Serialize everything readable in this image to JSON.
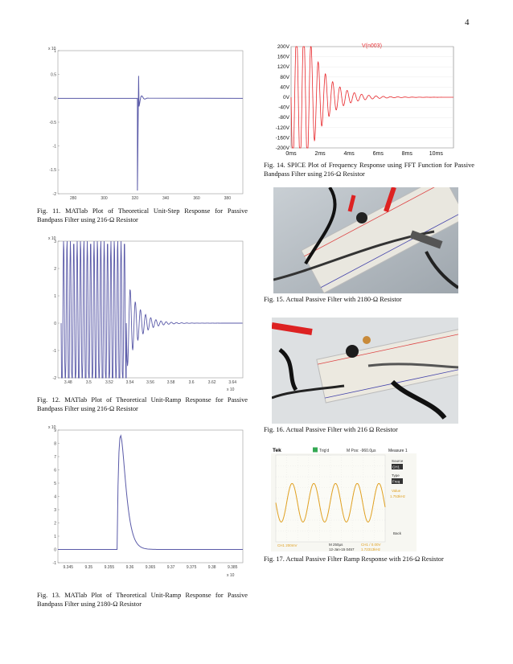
{
  "page": {
    "number": "4"
  },
  "figures": {
    "fig11": {
      "caption": "Fig. 11.   MATlab Plot of Theoretical Unit-Step Response for Passive Bandpass Filter using 216-Ω Resistor",
      "exponent": "x 10",
      "exponent_power": "-xxx",
      "y_ticks": [
        "1",
        "0.5",
        "0",
        "-0.5",
        "-1",
        "-1.5",
        "-2"
      ],
      "x_ticks": [
        "280",
        "300",
        "320",
        "340",
        "360",
        "380"
      ],
      "line_color": "#5a5aa8"
    },
    "fig12": {
      "caption": "Fig. 12.   MATlab Plot of Theoretical Unit-Ramp Response for Passive Bandpass Filter using 216-Ω Resistor",
      "exponent": "x 10",
      "y_ticks": [
        "3",
        "2",
        "1",
        "0",
        "-1",
        "-2"
      ],
      "x_ticks": [
        "3.48",
        "3.5",
        "3.52",
        "3.54",
        "3.56",
        "3.58",
        "3.6",
        "3.62",
        "3.64"
      ],
      "x_exponent": "x 10",
      "line_color": "#5a5aa8"
    },
    "fig13": {
      "caption": "Fig. 13.   MATlab Plot of Theoretical Unit-Ramp Response for Passive Bandpass Filter using 2180-Ω Resistor",
      "exponent": "x 10",
      "y_ticks": [
        "9",
        "8",
        "7",
        "6",
        "5",
        "4",
        "3",
        "2",
        "1",
        "0",
        "-1"
      ],
      "x_ticks": [
        "9.345",
        "9.35",
        "9.355",
        "9.36",
        "9.365",
        "9.37",
        "9.375",
        "9.38",
        "9.385"
      ],
      "x_exponent": "x 10",
      "line_color": "#5a5aa8"
    },
    "fig14": {
      "caption": "Fig. 14.   SPICE Plot of Frequency Response using FFT Function for Passive Bandpass Filter using 216-Ω Resistor",
      "trace_label": "V(n003)",
      "y_ticks": [
        "200V",
        "160V",
        "120V",
        "80V",
        "40V",
        "0V",
        "-40V",
        "-80V",
        "-120V",
        "-160V",
        "-200V"
      ],
      "x_ticks": [
        "0ms",
        "2ms",
        "4ms",
        "6ms",
        "8ms",
        "10ms"
      ],
      "line_color": "#e8262a"
    },
    "fig15": {
      "caption": "Fig. 15.   Actual Passive Filter with 2180-Ω Resistor"
    },
    "fig16": {
      "caption": "Fig. 16.   Actual Passive Filter with 216 Ω Resistor"
    },
    "fig17": {
      "caption": "Fig. 17.   Actual Passive Filter Ramp Response with 216-Ω Resistor",
      "scope": {
        "brand": "Tek",
        "trigger": "Trig'd",
        "mpos": "M Pos: -960.0µs",
        "menu_title": "Measure 1",
        "source_label": "Source",
        "source_value": "CH1",
        "type_label": "Type",
        "type_value": "Freq",
        "value_label": "Value",
        "value_value": "1.753kHz",
        "back_label": "Back",
        "ch1_scale": "CH1  200mV",
        "timebase": "M 250µs",
        "date": "12-Jan-15 0457",
        "ch1_trig": "CH1  /  0.00V",
        "freq_readout": "1.72313kHz",
        "trace_color": "#e0a020"
      }
    }
  }
}
